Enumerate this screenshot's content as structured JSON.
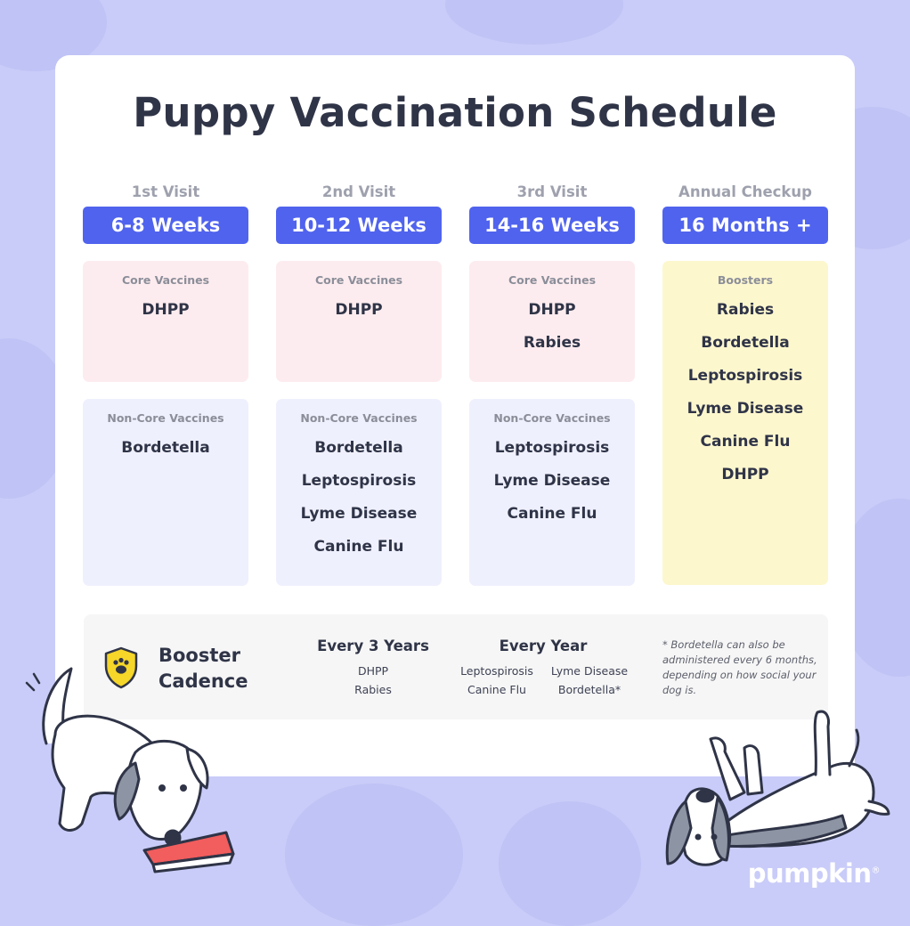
{
  "title": "Puppy Vaccination Schedule",
  "columns": [
    {
      "visit": "1st Visit",
      "age": "6-8 Weeks",
      "core_label": "Core Vaccines",
      "core": [
        "DHPP"
      ],
      "noncore_label": "Non-Core Vaccines",
      "noncore": [
        "Bordetella"
      ]
    },
    {
      "visit": "2nd Visit",
      "age": "10-12 Weeks",
      "core_label": "Core Vaccines",
      "core": [
        "DHPP"
      ],
      "noncore_label": "Non-Core Vaccines",
      "noncore": [
        "Bordetella",
        "Leptospirosis",
        "Lyme Disease",
        "Canine Flu"
      ]
    },
    {
      "visit": "3rd Visit",
      "age": "14-16 Weeks",
      "core_label": "Core Vaccines",
      "core": [
        "DHPP",
        "Rabies"
      ],
      "noncore_label": "Non-Core Vaccines",
      "noncore": [
        "Leptospirosis",
        "Lyme Disease",
        "Canine Flu"
      ]
    },
    {
      "visit": "Annual Checkup",
      "age": "16 Months +",
      "boosters_label": "Boosters",
      "boosters": [
        "Rabies",
        "Bordetella",
        "Leptospirosis",
        "Lyme Disease",
        "Canine Flu",
        "DHPP"
      ]
    }
  ],
  "cadence": {
    "title_line1": "Booster",
    "title_line2": "Cadence",
    "every3_label": "Every 3 Years",
    "every3": [
      "DHPP",
      "Rabies"
    ],
    "every_year_label": "Every Year",
    "every_year_col1": [
      "Leptospirosis",
      "Canine Flu"
    ],
    "every_year_col2": [
      "Lyme Disease",
      "Bordetella*"
    ],
    "note": "* Bordetella can also be administered every 6 months, depending on how social your dog is."
  },
  "brand": {
    "name": "pumpkin",
    "mark": "®"
  },
  "colors": {
    "background": "#c9ccf8",
    "pill": "#5063ee",
    "core_box": "#fdecef",
    "noncore_box": "#eff0fd",
    "booster_box": "#fdf7ce",
    "shield": "#f5d629"
  }
}
